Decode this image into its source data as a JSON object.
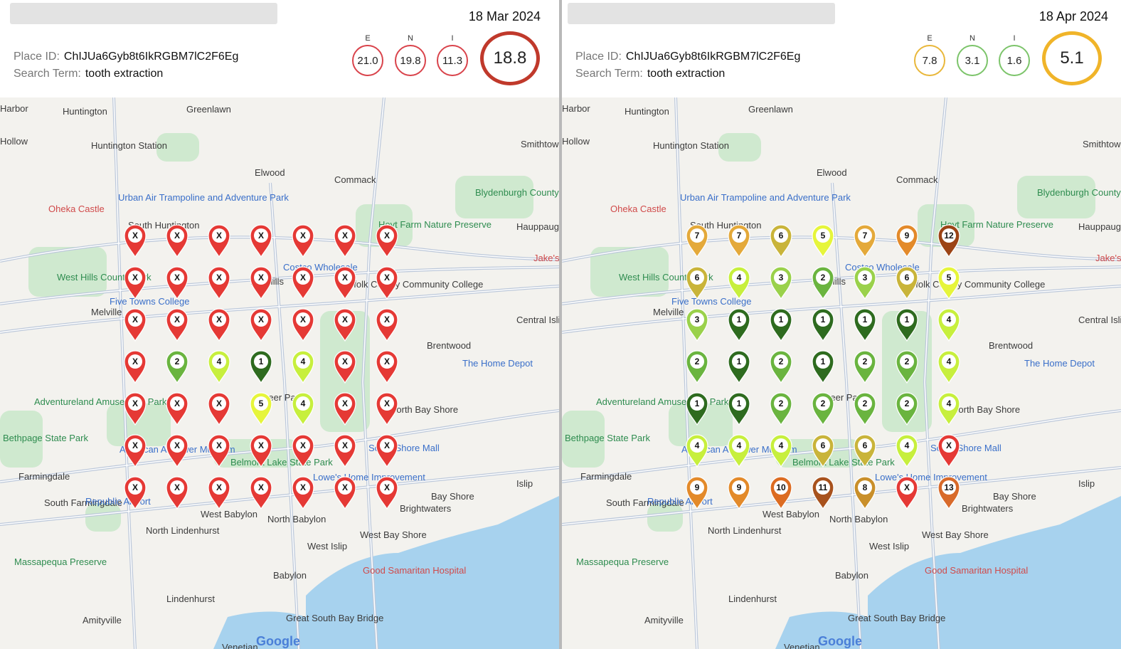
{
  "panels": [
    {
      "date": "18 Mar 2024",
      "place_id_label": "Place ID:",
      "place_id": "ChIJUa6Gyb8t6IkRGBM7lC2F6Eg",
      "search_term_label": "Search Term:",
      "search_term": "tooth extraction",
      "metrics": [
        {
          "label": "E",
          "value": "21.0",
          "color": "#d9434b"
        },
        {
          "label": "N",
          "value": "19.8",
          "color": "#d9434b"
        },
        {
          "label": "I",
          "value": "11.3",
          "color": "#d9434b"
        },
        {
          "label": "",
          "value": "18.8",
          "color": "#c0392b"
        }
      ],
      "grid": [
        [
          "X",
          "X",
          "X",
          "X",
          "X",
          "X",
          "X"
        ],
        [
          "X",
          "X",
          "X",
          "X",
          "X",
          "X",
          "X"
        ],
        [
          "X",
          "X",
          "X",
          "X",
          "X",
          "X",
          "X"
        ],
        [
          "X",
          "2",
          "4",
          "1",
          "4",
          "X",
          "X"
        ],
        [
          "X",
          "X",
          "X",
          "5",
          "4",
          "X",
          "X"
        ],
        [
          "X",
          "X",
          "X",
          "X",
          "X",
          "X",
          "X"
        ],
        [
          "X",
          "X",
          "X",
          "X",
          "X",
          "X",
          "X"
        ]
      ]
    },
    {
      "date": "18 Apr 2024",
      "place_id_label": "Place ID:",
      "place_id": "ChIJUa6Gyb8t6IkRGBM7lC2F6Eg",
      "search_term_label": "Search Term:",
      "search_term": "tooth extraction",
      "metrics": [
        {
          "label": "E",
          "value": "7.8",
          "color": "#e9b73a"
        },
        {
          "label": "N",
          "value": "3.1",
          "color": "#7cc46a"
        },
        {
          "label": "I",
          "value": "1.6",
          "color": "#7cc46a"
        },
        {
          "label": "",
          "value": "5.1",
          "color": "#f0b429"
        }
      ],
      "grid": [
        [
          "7",
          "7",
          "6",
          "5",
          "7",
          "9",
          "12"
        ],
        [
          "6",
          "4",
          "3",
          "2",
          "3",
          "6",
          "5"
        ],
        [
          "3",
          "1",
          "1",
          "1",
          "1",
          "1",
          "4"
        ],
        [
          "2",
          "1",
          "2",
          "1",
          "2",
          "2",
          "4"
        ],
        [
          "1",
          "1",
          "2",
          "2",
          "2",
          "2",
          "4"
        ],
        [
          "4",
          "4",
          "4",
          "6",
          "6",
          "4",
          "X"
        ],
        [
          "9",
          "9",
          "10",
          "11",
          "8",
          "X",
          "13"
        ]
      ]
    }
  ],
  "map_labels": {
    "places": [
      "Harbor",
      "Huntington",
      "Greenlawn",
      "Hollow",
      "Huntington Station",
      "Elwood",
      "Commack",
      "Smithtown",
      "Oheka Castle",
      "Urban Air Trampoline and Adventure Park",
      "Blydenburgh County Park",
      "South Huntington",
      "Hoyt Farm Nature Preserve",
      "Hauppauge",
      "West Hills County Park",
      "Costco Wholesale",
      "Dix Hills",
      "Five Towns College",
      "Suffolk County Community College",
      "Melville",
      "Central Islip",
      "Brentwood",
      "The Home Depot",
      "Deer Park",
      "Adventureland Amusement Park",
      "North Bay Shore",
      "Bethpage State Park",
      "South Shore Mall",
      "American Airpower Museum",
      "Belmont Lake State Park",
      "Lowe's Home Improvement",
      "Farmingdale",
      "Islip",
      "South Farmingdale",
      "Republic Airport",
      "North Lindenhurst",
      "West Babylon",
      "North Babylon",
      "West Islip",
      "West Bay Shore",
      "Bay Shore",
      "Brightwaters",
      "Massapequa Preserve",
      "Babylon",
      "Good Samaritan Hospital",
      "Lindenhurst",
      "Great South Bay Bridge",
      "Amityville",
      "Venetian",
      "Google",
      "Jake's"
    ]
  },
  "colors": {
    "X": "#e53935",
    "1": "#2e6b1f",
    "2": "#6ab43f",
    "3": "#9ad14b",
    "4": "#c7ef3d",
    "5": "#e6f53b",
    "6": "#c9b43a",
    "7": "#e4a93a",
    "8": "#c98f2a",
    "9": "#e38a2a",
    "10": "#dc6c22",
    "11": "#a8521d",
    "12": "#9c4416",
    "13": "#d86a2a"
  }
}
